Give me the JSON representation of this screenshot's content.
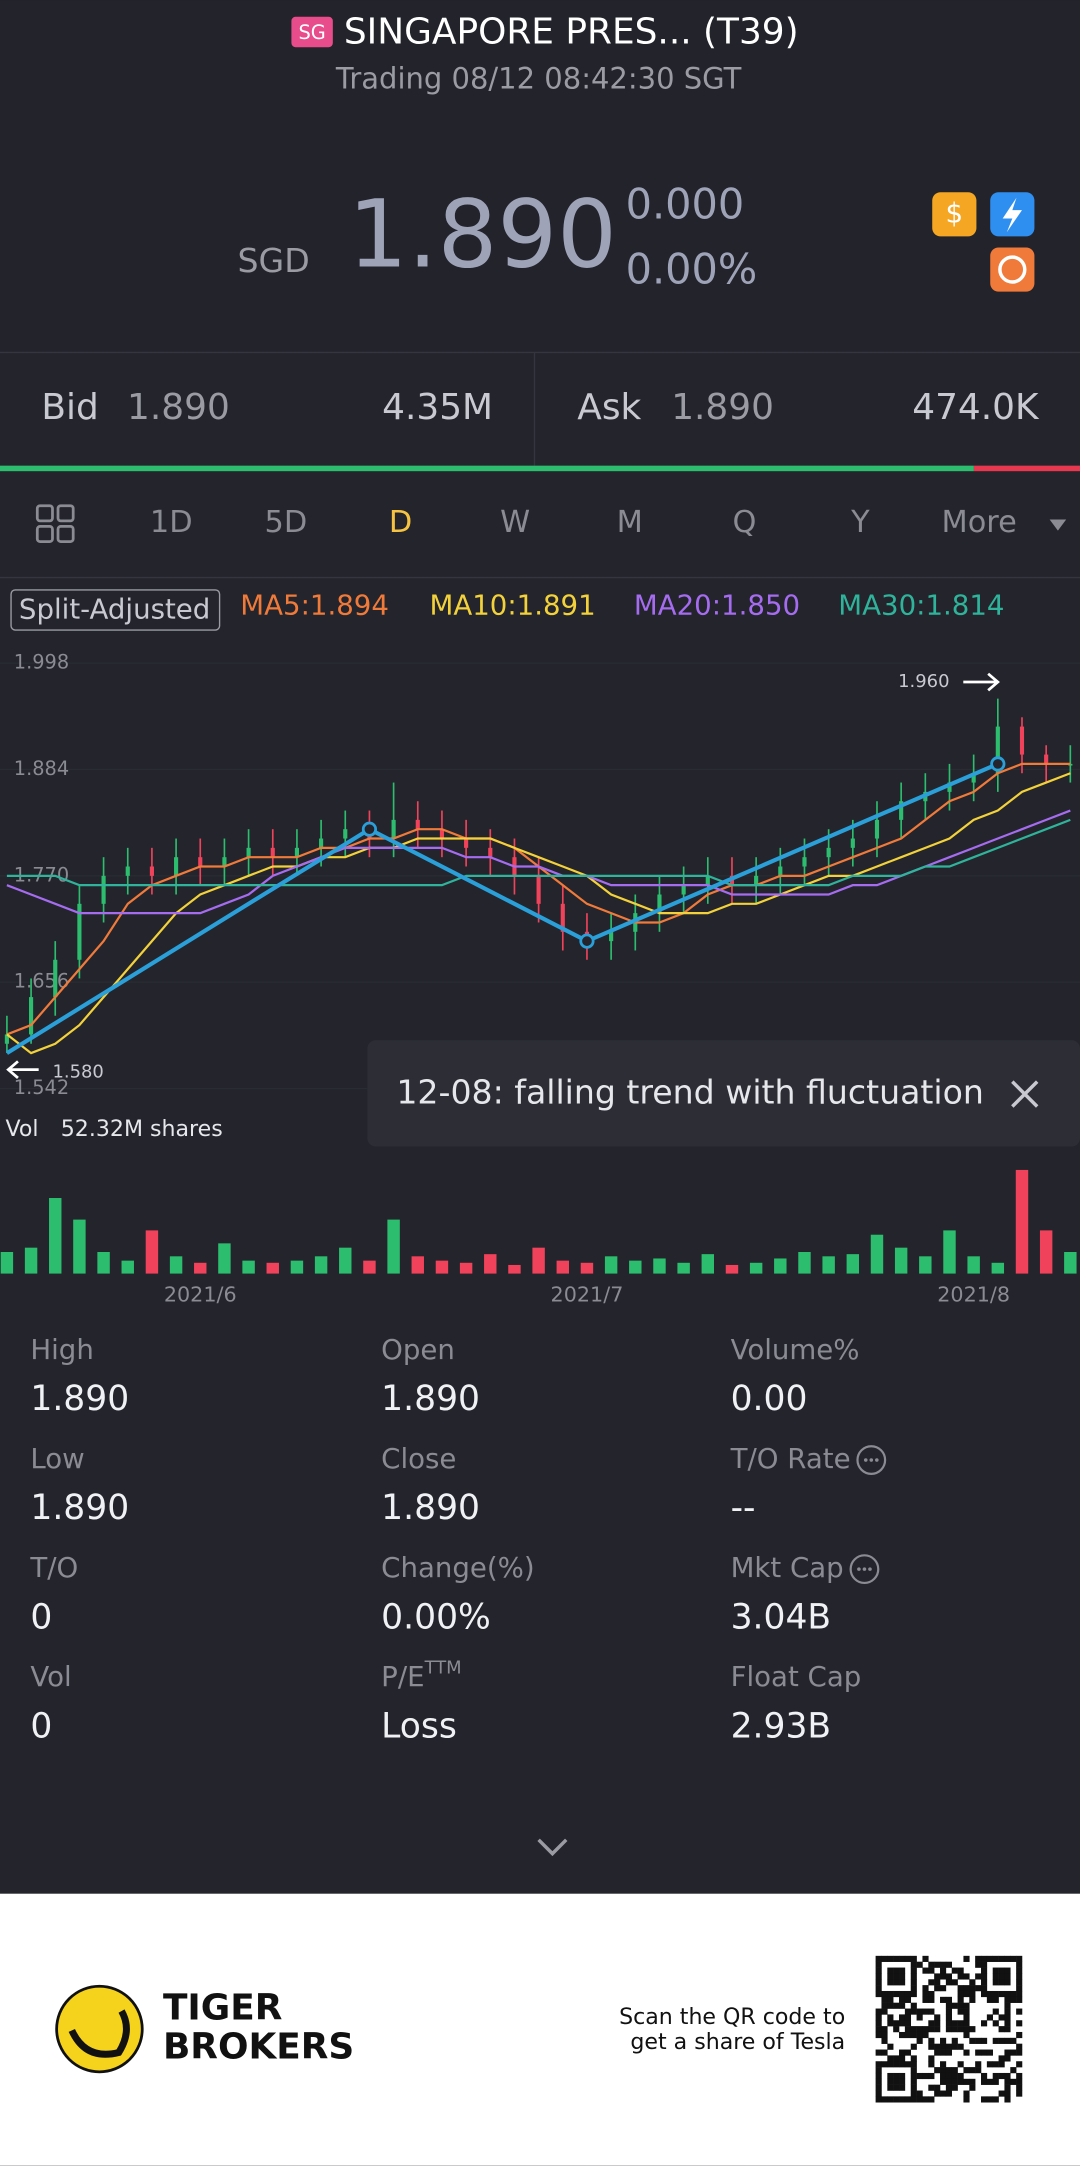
{
  "header": {
    "badge": "SG",
    "title": "SINGAPORE PRES... (T39)",
    "subtitle": "Trading 08/12 08:42:30 SGT"
  },
  "quote": {
    "currency": "SGD",
    "price": "1.890",
    "change": "0.000",
    "change_pct": "0.00%"
  },
  "book": {
    "bid_label": "Bid",
    "bid_price": "1.890",
    "bid_size": {
      "value": 4350000,
      "label": "4.35M"
    },
    "ask_label": "Ask",
    "ask_price": "1.890",
    "ask_size": {
      "value": 474000,
      "label": "474.0K"
    },
    "bid_color": "#2dbd6e",
    "ask_color": "#e8384f"
  },
  "tabs": {
    "items": [
      "1D",
      "5D",
      "D",
      "W",
      "M",
      "Q",
      "Y",
      "More"
    ],
    "active": 2
  },
  "chart_data": {
    "type": "candlestick",
    "adjust_label": "Split-Adjusted",
    "ylim": [
      1.542,
      1.998
    ],
    "yticks": [
      1.542,
      1.656,
      {
        "value": 1.77,
        "label": "1.770"
      },
      1.884,
      1.998
    ],
    "up_color": "#2dbd6e",
    "down_color": "#f0425a",
    "open": [
      1.59,
      1.6,
      1.64,
      1.68,
      1.74,
      1.77,
      1.78,
      1.77,
      1.79,
      1.78,
      1.79,
      1.8,
      1.79,
      1.8,
      1.81,
      1.82,
      1.81,
      1.83,
      1.82,
      1.81,
      1.8,
      1.79,
      1.77,
      1.74,
      1.71,
      1.7,
      1.71,
      1.73,
      1.75,
      1.76,
      1.77,
      1.76,
      1.77,
      1.78,
      1.79,
      1.8,
      1.81,
      1.83,
      1.85,
      1.86,
      1.87,
      1.88,
      1.93,
      1.9,
      1.89
    ],
    "high": [
      1.62,
      1.66,
      1.7,
      1.76,
      1.79,
      1.8,
      1.8,
      1.81,
      1.81,
      1.81,
      1.82,
      1.82,
      1.82,
      1.83,
      1.84,
      1.84,
      1.87,
      1.85,
      1.84,
      1.83,
      1.82,
      1.81,
      1.79,
      1.76,
      1.73,
      1.73,
      1.75,
      1.77,
      1.78,
      1.79,
      1.79,
      1.79,
      1.8,
      1.81,
      1.82,
      1.83,
      1.85,
      1.87,
      1.88,
      1.89,
      1.9,
      1.96,
      1.94,
      1.91,
      1.91
    ],
    "low": [
      1.58,
      1.59,
      1.62,
      1.66,
      1.72,
      1.75,
      1.75,
      1.75,
      1.76,
      1.76,
      1.77,
      1.77,
      1.77,
      1.78,
      1.79,
      1.79,
      1.79,
      1.8,
      1.79,
      1.78,
      1.77,
      1.75,
      1.72,
      1.69,
      1.68,
      1.68,
      1.69,
      1.71,
      1.73,
      1.74,
      1.74,
      1.74,
      1.75,
      1.76,
      1.77,
      1.78,
      1.79,
      1.81,
      1.83,
      1.84,
      1.85,
      1.86,
      1.88,
      1.87,
      1.87
    ],
    "close": [
      1.6,
      1.64,
      1.68,
      1.74,
      1.77,
      1.78,
      1.77,
      1.79,
      1.78,
      1.79,
      1.8,
      1.79,
      1.8,
      1.81,
      1.82,
      1.81,
      1.83,
      1.82,
      1.81,
      1.8,
      1.79,
      1.77,
      1.74,
      1.71,
      1.7,
      1.71,
      1.73,
      1.75,
      1.76,
      1.77,
      1.76,
      1.77,
      1.78,
      1.79,
      1.8,
      1.81,
      1.83,
      1.85,
      1.86,
      1.87,
      1.88,
      1.93,
      1.9,
      1.89,
      1.89
    ],
    "ma_lines": [
      {
        "name": "MA5:1.894",
        "color": "#f07a3a",
        "values": [
          1.6,
          1.61,
          1.64,
          1.67,
          1.7,
          1.74,
          1.76,
          1.77,
          1.78,
          1.78,
          1.79,
          1.79,
          1.79,
          1.8,
          1.8,
          1.81,
          1.81,
          1.82,
          1.82,
          1.81,
          1.81,
          1.8,
          1.78,
          1.76,
          1.74,
          1.73,
          1.72,
          1.72,
          1.73,
          1.75,
          1.76,
          1.76,
          1.77,
          1.77,
          1.78,
          1.79,
          1.8,
          1.81,
          1.83,
          1.85,
          1.86,
          1.88,
          1.89,
          1.89,
          1.89
        ]
      },
      {
        "name": "MA10:1.891",
        "color": "#f2d13a",
        "values": [
          1.6,
          1.58,
          1.59,
          1.61,
          1.64,
          1.67,
          1.7,
          1.73,
          1.75,
          1.76,
          1.77,
          1.78,
          1.78,
          1.79,
          1.79,
          1.8,
          1.8,
          1.81,
          1.81,
          1.81,
          1.81,
          1.8,
          1.79,
          1.78,
          1.77,
          1.75,
          1.74,
          1.73,
          1.73,
          1.73,
          1.74,
          1.74,
          1.75,
          1.76,
          1.77,
          1.77,
          1.78,
          1.79,
          1.8,
          1.81,
          1.83,
          1.84,
          1.86,
          1.87,
          1.88
        ]
      },
      {
        "name": "MA20:1.850",
        "color": "#a66cf0",
        "values": [
          1.76,
          1.75,
          1.74,
          1.73,
          1.73,
          1.73,
          1.73,
          1.73,
          1.73,
          1.74,
          1.75,
          1.77,
          1.78,
          1.79,
          1.8,
          1.8,
          1.8,
          1.8,
          1.8,
          1.79,
          1.79,
          1.78,
          1.78,
          1.77,
          1.77,
          1.76,
          1.76,
          1.76,
          1.76,
          1.76,
          1.75,
          1.75,
          1.75,
          1.75,
          1.75,
          1.76,
          1.76,
          1.77,
          1.78,
          1.79,
          1.8,
          1.81,
          1.82,
          1.83,
          1.84
        ]
      },
      {
        "name": "MA30:1.814",
        "color": "#2fb39a",
        "values": [
          1.77,
          1.77,
          1.77,
          1.76,
          1.76,
          1.76,
          1.76,
          1.76,
          1.76,
          1.76,
          1.76,
          1.76,
          1.76,
          1.76,
          1.76,
          1.76,
          1.76,
          1.76,
          1.76,
          1.77,
          1.77,
          1.77,
          1.77,
          1.77,
          1.77,
          1.77,
          1.77,
          1.77,
          1.77,
          1.77,
          1.76,
          1.76,
          1.76,
          1.76,
          1.76,
          1.77,
          1.77,
          1.77,
          1.78,
          1.78,
          1.79,
          1.8,
          1.81,
          1.82,
          1.83
        ]
      }
    ],
    "trend": {
      "color": "#2a9fd8",
      "x": [
        0,
        15,
        24,
        41
      ],
      "values": [
        1.58,
        1.82,
        1.7,
        1.89
      ]
    },
    "high_mark": {
      "value": 1.96,
      "label": "1.960"
    },
    "low_mark": {
      "value": 1.58,
      "label": "1.580"
    },
    "tooltip": "12-08: falling trend with fluctuation",
    "vol_label": "Vol",
    "vol_value": "52.32M shares",
    "vol_ylim": [
      0,
      55
    ],
    "volume": [
      10,
      12,
      35,
      25,
      10,
      6,
      20,
      8,
      5,
      14,
      6,
      5,
      6,
      8,
      12,
      6,
      25,
      8,
      6,
      5,
      9,
      4,
      12,
      6,
      5,
      8,
      6,
      7,
      5,
      9,
      4,
      5,
      7,
      10,
      8,
      9,
      18,
      12,
      8,
      20,
      8,
      5,
      48,
      20,
      10
    ],
    "x_labels": [
      {
        "index": 8,
        "label": "2021/6"
      },
      {
        "index": 24,
        "label": "2021/7"
      },
      {
        "index": 40,
        "label": "2021/8"
      }
    ]
  },
  "stats": [
    {
      "label": "High",
      "value": "1.890"
    },
    {
      "label": "Open",
      "value": "1.890"
    },
    {
      "label": "Volume%",
      "value": "0.00"
    },
    {
      "label": "Low",
      "value": "1.890"
    },
    {
      "label": "Close",
      "value": "1.890"
    },
    {
      "label": "T/O Rate",
      "value": "--",
      "info": true
    },
    {
      "label": "T/O",
      "value": "0"
    },
    {
      "label": "Change(%)",
      "value": "0.00%"
    },
    {
      "label": "Mkt Cap",
      "value": "3.04B",
      "info": true
    },
    {
      "label": "Vol",
      "value": "0"
    },
    {
      "label": "P/E",
      "sup": "TTM",
      "value": "Loss"
    },
    {
      "label": "Float Cap",
      "value": "2.93B"
    }
  ],
  "footer": {
    "brand_1": "TIGER",
    "brand_2": "BROKERS",
    "promo_1": "Scan the QR code to",
    "promo_2": "get a share of Tesla"
  }
}
